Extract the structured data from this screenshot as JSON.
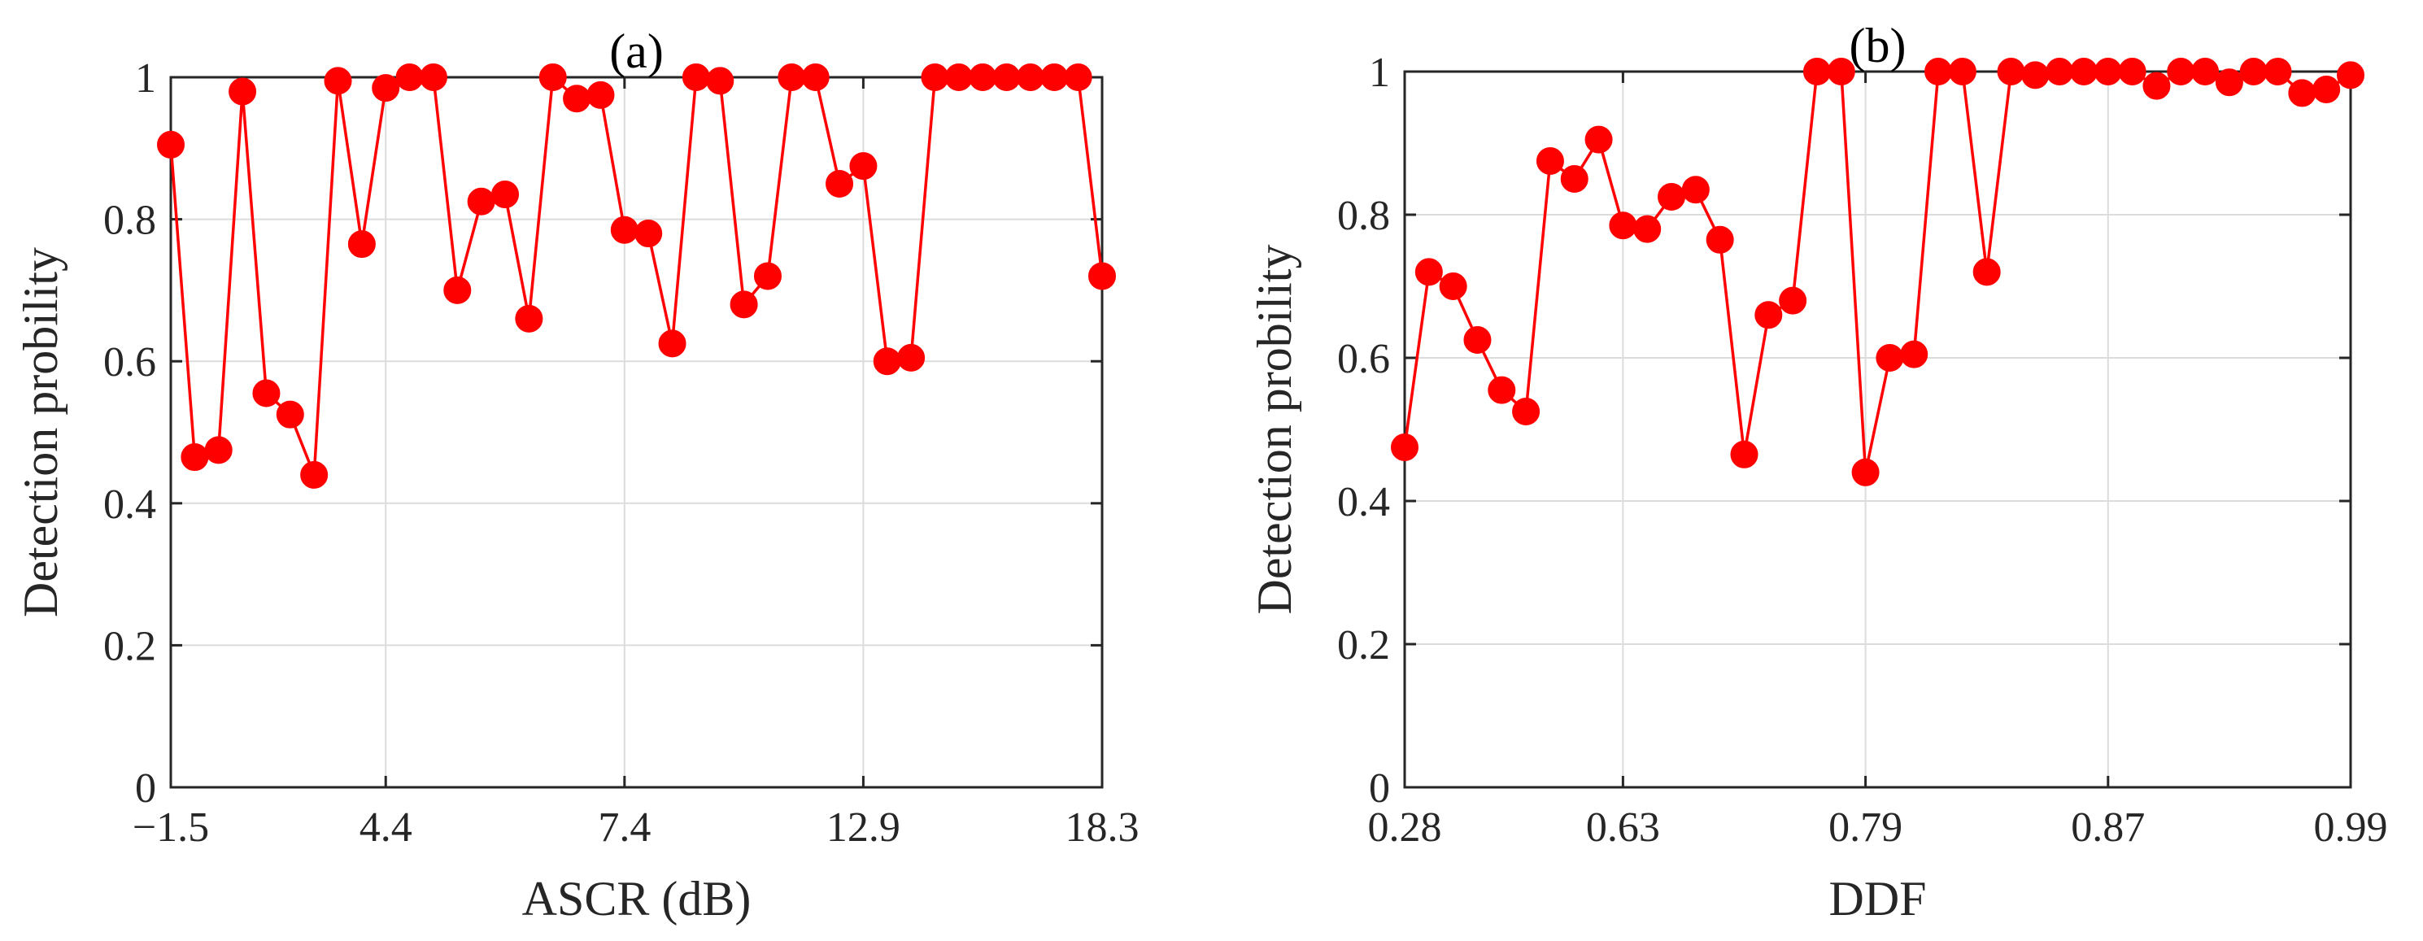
{
  "chart_data": [
    {
      "type": "line",
      "title": "(a)",
      "xlabel": "ASCR (dB)",
      "ylabel": "Detection probility",
      "x_tick_labels": [
        "−1.5",
        "4.4",
        "7.4",
        "12.9",
        "18.3"
      ],
      "y_tick_labels": [
        "0",
        "0.2",
        "0.4",
        "0.6",
        "0.8",
        "1"
      ],
      "ylim": [
        0,
        1
      ],
      "grid": true,
      "marker": "filled-circle",
      "color": "#ff0000",
      "x_note": "x axis is an ordinal index over 40 sampled ASCR values (ticks at −1.5, 4.4, 7.4, 12.9, 18.3 dB)",
      "series": [
        {
          "values": [
            0.905,
            0.465,
            0.475,
            0.98,
            0.555,
            0.525,
            0.44,
            0.995,
            0.765,
            0.985,
            1.0,
            1.0,
            0.7,
            0.825,
            0.835,
            0.66,
            1.0,
            0.97,
            0.975,
            0.785,
            0.78,
            0.625,
            1.0,
            0.995,
            0.68,
            0.72,
            1.0,
            1.0,
            0.85,
            0.875,
            0.6,
            0.605,
            1.0,
            1.0,
            1.0,
            1.0,
            1.0,
            1.0,
            1.0,
            0.72
          ]
        }
      ]
    },
    {
      "type": "line",
      "title": "(b)",
      "xlabel": "DDF",
      "ylabel": "Detection probility",
      "x_tick_labels": [
        "0.28",
        "0.63",
        "0.79",
        "0.87",
        "0.99"
      ],
      "y_tick_labels": [
        "0",
        "0.2",
        "0.4",
        "0.6",
        "0.8",
        "1"
      ],
      "ylim": [
        0,
        1
      ],
      "grid": true,
      "marker": "filled-circle",
      "color": "#ff0000",
      "x_note": "x axis is an ordinal index over 40 sampled DDF values (ticks at 0.28, 0.63, 0.79, 0.87, 0.99)",
      "series": [
        {
          "values": [
            0.475,
            0.72,
            0.7,
            0.625,
            0.555,
            0.525,
            0.875,
            0.85,
            0.905,
            0.785,
            0.78,
            0.825,
            0.835,
            0.765,
            0.465,
            0.66,
            0.68,
            1.0,
            1.0,
            0.44,
            0.6,
            0.605,
            1.0,
            1.0,
            0.72,
            1.0,
            0.995,
            1.0,
            1.0,
            1.0,
            1.0,
            0.98,
            1.0,
            1.0,
            0.985,
            1.0,
            1.0,
            0.97,
            0.975,
            0.995
          ]
        }
      ]
    }
  ]
}
